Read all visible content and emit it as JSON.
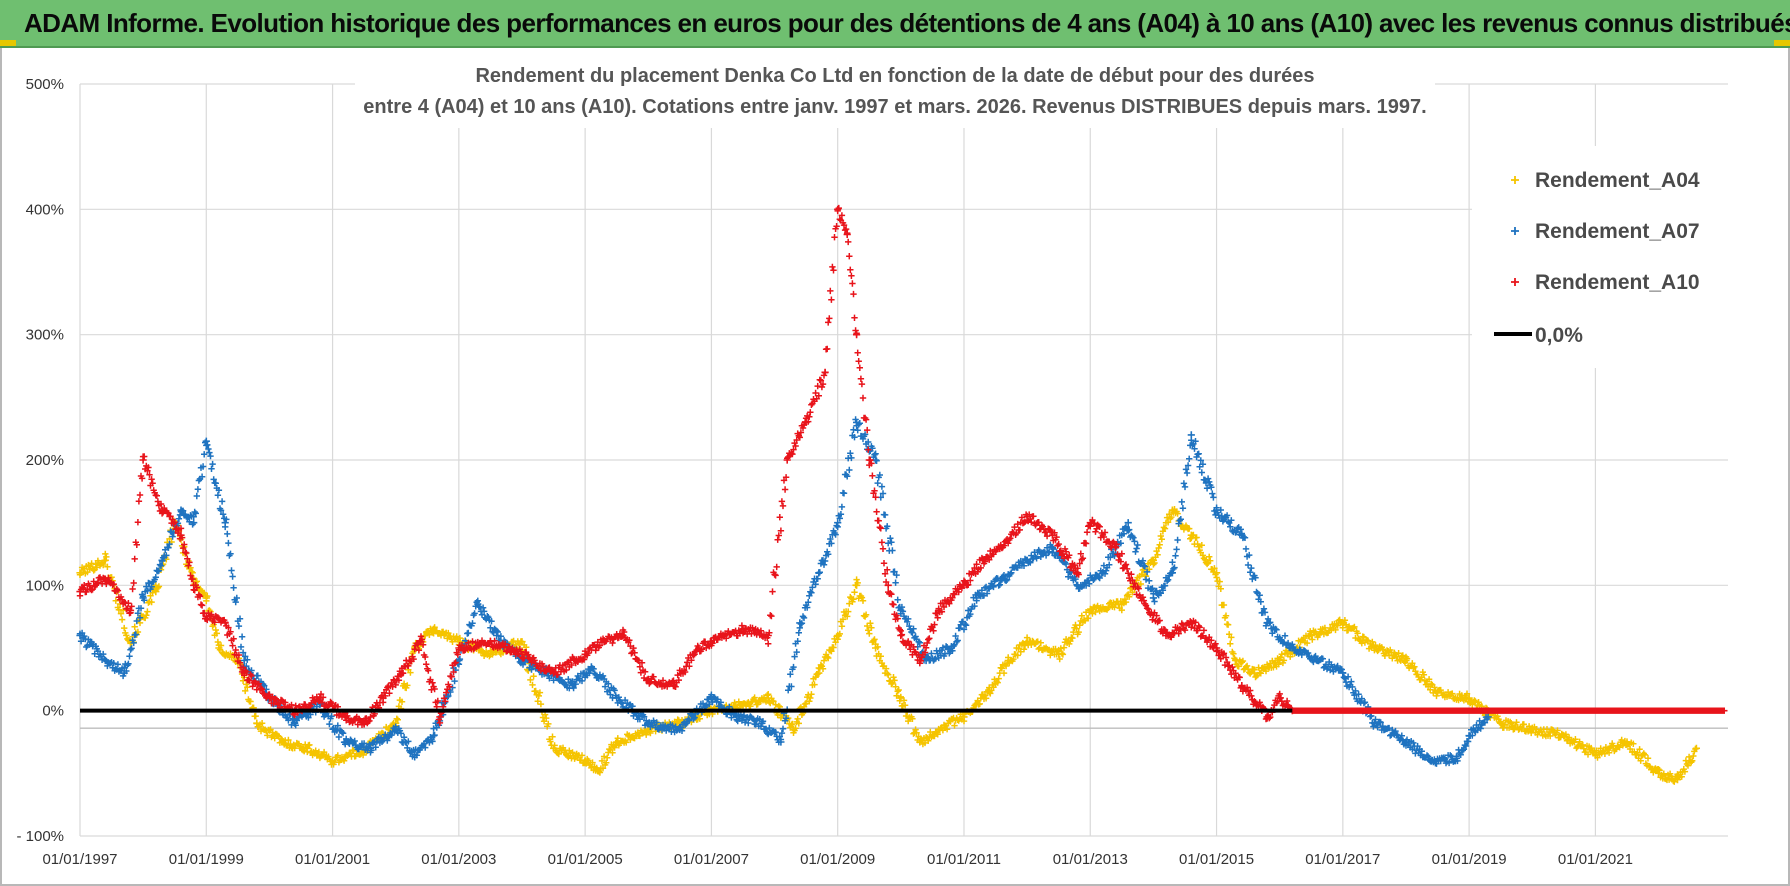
{
  "banner": {
    "title": "ADAM Informe. Evolution historique des performances en euros pour des détentions de 4 ans (A04) à 10 ans (A10) avec les revenus connus distribués"
  },
  "colors": {
    "banner": "#6fbf70",
    "A04": "#f5c400",
    "A07": "#1f73c0",
    "A10": "#e8141b",
    "zero_line": "#000000",
    "grid": "#d9d9d9"
  },
  "chart_data": {
    "type": "scatter",
    "title_lines": [
      "Rendement du placement Denka Co Ltd en fonction de la date de début pour des durées",
      "entre 4 (A04) et 10 ans (A10).  Cotations entre janv. 1997 et mars. 2026. Revenus DISTRIBUES depuis mars. 1997."
    ],
    "xlabel": "",
    "ylabel": "",
    "x_range": [
      1997.0,
      2023.1
    ],
    "ylim": [
      -100,
      500
    ],
    "y_ticks": [
      {
        "value": 500,
        "label": "500%"
      },
      {
        "value": 400,
        "label": "400%"
      },
      {
        "value": 300,
        "label": "300%"
      },
      {
        "value": 200,
        "label": "200%"
      },
      {
        "value": 100,
        "label": "100%"
      },
      {
        "value": 0,
        "label": "0%"
      },
      {
        "value": -100,
        "label": "- 100%"
      }
    ],
    "x_ticks": [
      {
        "value": 1997,
        "label": "01/01/1997"
      },
      {
        "value": 1999,
        "label": "01/01/1999"
      },
      {
        "value": 2001,
        "label": "01/01/2001"
      },
      {
        "value": 2003,
        "label": "01/01/2003"
      },
      {
        "value": 2005,
        "label": "01/01/2005"
      },
      {
        "value": 2007,
        "label": "01/01/2007"
      },
      {
        "value": 2009,
        "label": "01/01/2009"
      },
      {
        "value": 2011,
        "label": "01/01/2011"
      },
      {
        "value": 2013,
        "label": "01/01/2013"
      },
      {
        "value": 2015,
        "label": "01/01/2015"
      },
      {
        "value": 2017,
        "label": "01/01/2017"
      },
      {
        "value": 2019,
        "label": "01/01/2019"
      },
      {
        "value": 2021,
        "label": "01/01/2021"
      }
    ],
    "grid": true,
    "legend_position": "top-right",
    "series": [
      {
        "name": "Rendement_A04",
        "marker": "+",
        "color": "#f5c400",
        "x": [
          1997.0,
          1997.4,
          1997.8,
          1998.2,
          1998.5,
          1998.8,
          1999.0,
          1999.2,
          1999.5,
          1999.8,
          2000.2,
          2000.6,
          2001.0,
          2001.5,
          2002.0,
          2002.3,
          2002.6,
          2003.0,
          2003.5,
          2004.0,
          2004.5,
          2005.0,
          2005.2,
          2005.5,
          2006.0,
          2006.5,
          2007.0,
          2007.5,
          2007.9,
          2008.3,
          2008.7,
          2009.0,
          2009.3,
          2009.6,
          2010.0,
          2010.3,
          2010.6,
          2011.0,
          2011.4,
          2011.7,
          2012.0,
          2012.5,
          2013.0,
          2013.5,
          2014.0,
          2014.3,
          2014.6,
          2015.0,
          2015.3,
          2015.6,
          2016.0,
          2016.5,
          2017.0,
          2017.5,
          2018.0,
          2018.5,
          2019.0,
          2019.5,
          2020.0,
          2020.5,
          2021.0,
          2021.5,
          2022.0,
          2022.3,
          2022.6
        ],
        "y": [
          110,
          120,
          55,
          95,
          150,
          105,
          90,
          50,
          40,
          -10,
          -25,
          -30,
          -40,
          -32,
          -10,
          50,
          65,
          55,
          45,
          55,
          -30,
          -40,
          -48,
          -25,
          -15,
          -10,
          0,
          5,
          10,
          -15,
          30,
          60,
          100,
          50,
          10,
          -25,
          -15,
          -5,
          15,
          40,
          55,
          45,
          80,
          85,
          120,
          160,
          140,
          110,
          40,
          30,
          40,
          60,
          70,
          50,
          40,
          15,
          10,
          -10,
          -15,
          -20,
          -35,
          -25,
          -50,
          -55,
          -30
        ]
      },
      {
        "name": "Rendement_A07",
        "marker": "+",
        "color": "#1f73c0",
        "x": [
          1997.0,
          1997.4,
          1997.7,
          1998.0,
          1998.3,
          1998.6,
          1998.8,
          1999.0,
          1999.3,
          1999.6,
          2000.0,
          2000.4,
          2000.8,
          2001.2,
          2001.6,
          2002.0,
          2002.3,
          2002.6,
          2003.0,
          2003.3,
          2003.6,
          2004.0,
          2004.4,
          2004.8,
          2005.1,
          2005.5,
          2006.0,
          2006.5,
          2007.0,
          2007.4,
          2007.8,
          2008.1,
          2008.4,
          2008.7,
          2009.0,
          2009.3,
          2009.6,
          2010.0,
          2010.4,
          2010.8,
          2011.2,
          2011.6,
          2012.0,
          2012.4,
          2012.8,
          2013.2,
          2013.6,
          2014.0,
          2014.3,
          2014.6,
          2015.0,
          2015.4,
          2015.8,
          2016.2,
          2016.6,
          2017.0,
          2017.5,
          2018.0,
          2018.4,
          2018.8,
          2019.0,
          2019.3
        ],
        "y": [
          60,
          40,
          30,
          90,
          120,
          160,
          150,
          215,
          150,
          40,
          10,
          -10,
          5,
          -25,
          -30,
          -15,
          -35,
          -20,
          40,
          85,
          60,
          40,
          30,
          20,
          35,
          10,
          -10,
          -15,
          10,
          -5,
          -10,
          -25,
          70,
          110,
          150,
          230,
          200,
          80,
          40,
          50,
          90,
          105,
          120,
          130,
          100,
          110,
          150,
          90,
          110,
          220,
          160,
          140,
          70,
          50,
          40,
          30,
          -10,
          -25,
          -40,
          -38,
          -20,
          -5
        ]
      },
      {
        "name": "Rendement_A10",
        "marker": "+",
        "color": "#e8141b",
        "x": [
          1997.0,
          1997.4,
          1997.8,
          1998.0,
          1998.3,
          1998.6,
          1998.8,
          1999.0,
          1999.3,
          1999.6,
          2000.0,
          2000.4,
          2000.8,
          2001.2,
          2001.5,
          2001.8,
          2002.1,
          2002.4,
          2002.7,
          2003.0,
          2003.5,
          2004.0,
          2004.5,
          2005.0,
          2005.3,
          2005.6,
          2006.0,
          2006.4,
          2006.8,
          2007.0,
          2007.5,
          2007.9,
          2008.2,
          2008.5,
          2008.8,
          2009.0,
          2009.15,
          2009.3,
          2009.5,
          2009.8,
          2010.0,
          2010.3,
          2010.6,
          2011.0,
          2011.3,
          2011.6,
          2012.0,
          2012.4,
          2012.8,
          2013.0,
          2013.4,
          2013.8,
          2014.2,
          2014.6,
          2015.0,
          2015.4,
          2015.8,
          2016.0,
          2016.2
        ],
        "y": [
          95,
          105,
          80,
          200,
          160,
          140,
          100,
          75,
          70,
          30,
          10,
          0,
          10,
          -5,
          -10,
          10,
          30,
          55,
          -5,
          50,
          55,
          45,
          30,
          45,
          55,
          60,
          25,
          20,
          50,
          55,
          65,
          60,
          200,
          230,
          270,
          400,
          380,
          300,
          200,
          100,
          60,
          40,
          80,
          100,
          120,
          130,
          155,
          140,
          110,
          150,
          130,
          90,
          60,
          70,
          50,
          20,
          -5,
          10,
          0
        ]
      }
    ],
    "zero_line": {
      "label": "0,0%",
      "value": 0
    }
  }
}
